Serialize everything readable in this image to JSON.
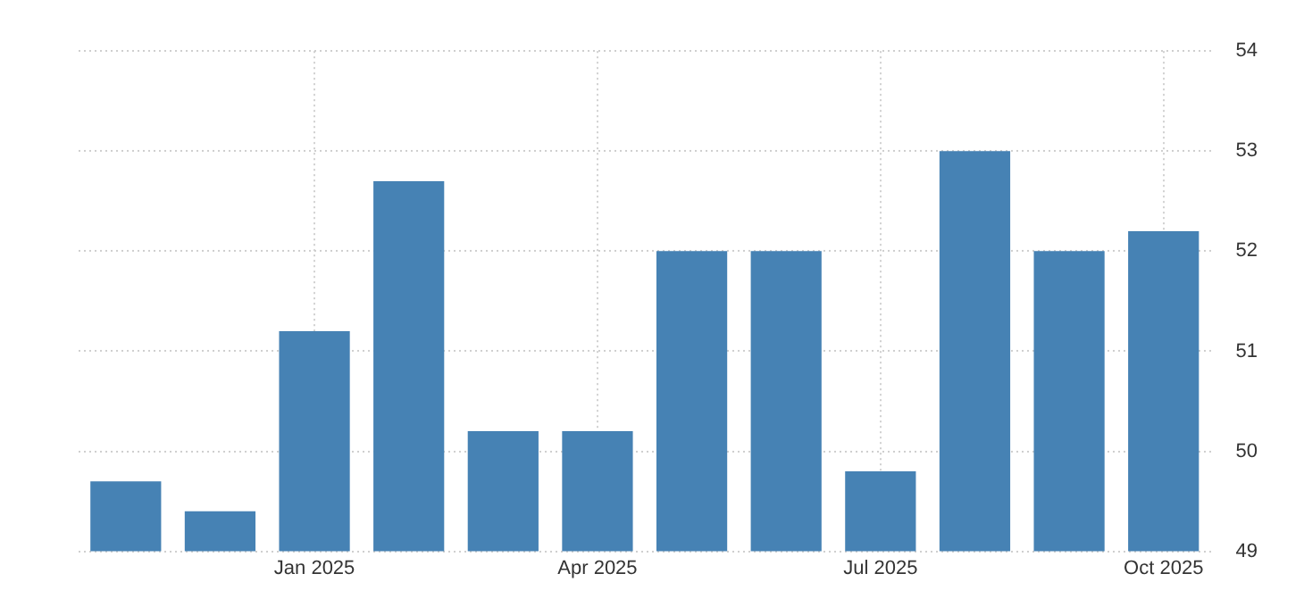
{
  "chart_data": {
    "type": "bar",
    "categories": [
      null,
      null,
      "Jan 2025",
      null,
      null,
      "Apr 2025",
      null,
      null,
      "Jul 2025",
      null,
      null,
      "Oct 2025"
    ],
    "values": [
      49.7,
      49.4,
      51.2,
      52.7,
      50.2,
      50.2,
      52,
      52,
      49.8,
      53,
      52,
      52.2
    ],
    "color": "#4682b4",
    "ylim": [
      49,
      54
    ],
    "yticks": [
      49,
      50,
      51,
      52,
      53,
      54
    ],
    "grid": true
  }
}
